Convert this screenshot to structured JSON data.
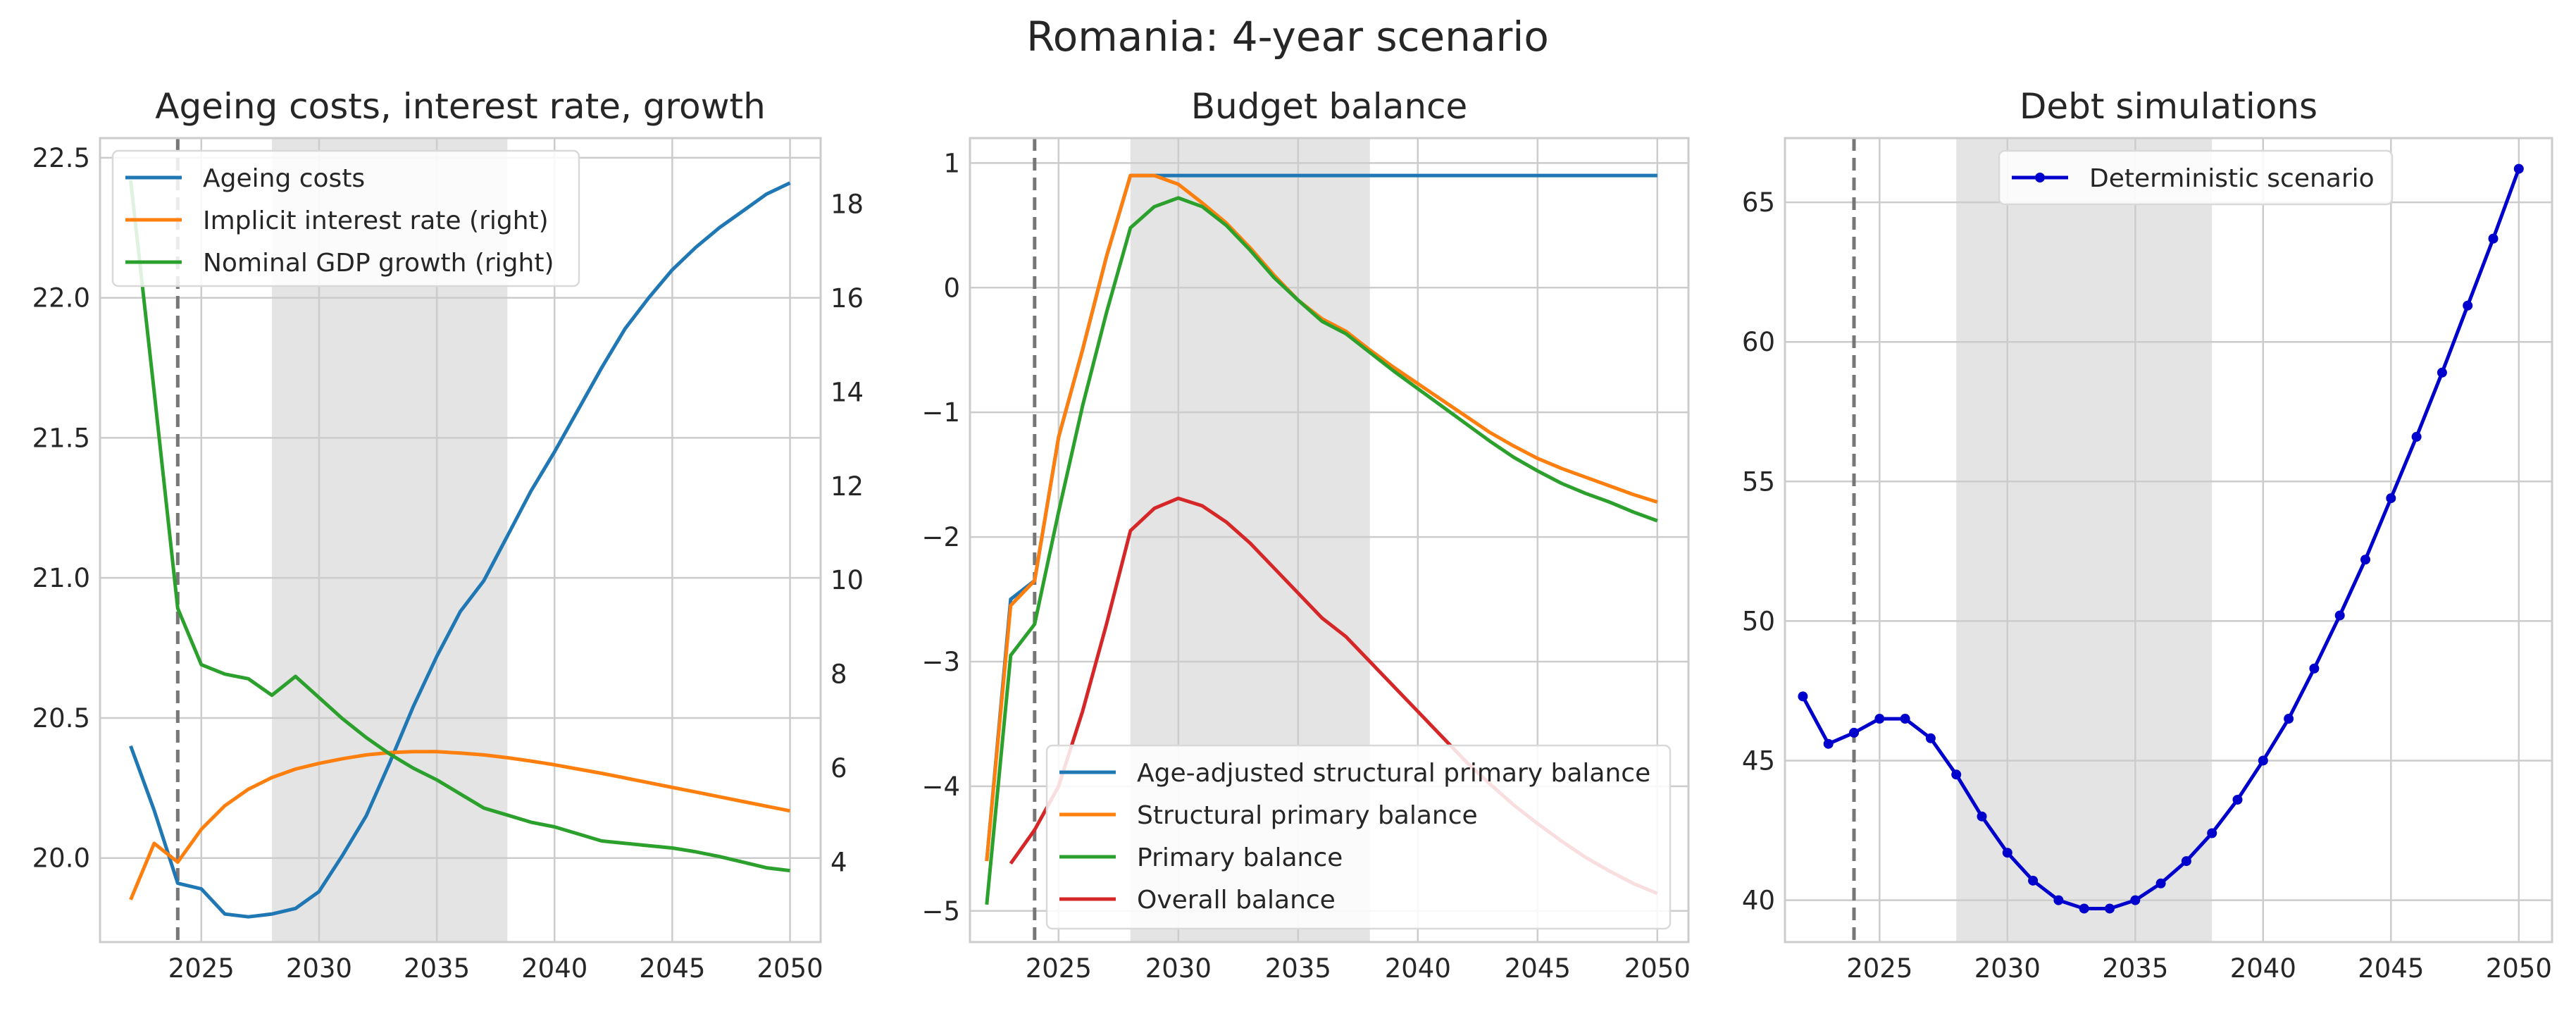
{
  "suptitle": "Romania: 4-year scenario",
  "colors": {
    "blue": "#1f77b4",
    "orange": "#ff7f0e",
    "green": "#2ca02c",
    "red": "#d62728",
    "debt_blue": "#0000cc",
    "grid": "#cccccc",
    "shade": "#e4e4e4",
    "vline": "#777777"
  },
  "chart_data": [
    {
      "type": "line",
      "title": "Ageing costs, interest rate, growth",
      "xlim": [
        2020.7,
        2051.3
      ],
      "ylim": [
        19.7,
        22.57
      ],
      "y2lim": [
        2.3,
        19.4
      ],
      "xticks": [
        2025,
        2030,
        2035,
        2040,
        2045,
        2050
      ],
      "yticks": [
        20.0,
        20.5,
        21.0,
        21.5,
        22.0,
        22.5
      ],
      "ytick_labels": [
        "20.0",
        "20.5",
        "21.0",
        "21.5",
        "22.0",
        "22.5"
      ],
      "y2ticks": [
        4,
        6,
        8,
        10,
        12,
        14,
        16,
        18
      ],
      "grid": true,
      "legend_position": "upper-left",
      "shaded_region": [
        2028,
        2038
      ],
      "vline": 2024,
      "series": [
        {
          "name": "Ageing costs",
          "axis": "left",
          "color": "#1f77b4",
          "x": [
            2022,
            2023,
            2024,
            2025,
            2026,
            2027,
            2028,
            2029,
            2030,
            2031,
            2032,
            2033,
            2034,
            2035,
            2036,
            2037,
            2038,
            2039,
            2040,
            2041,
            2042,
            2043,
            2044,
            2045,
            2046,
            2047,
            2048,
            2049,
            2050
          ],
          "y": [
            20.4,
            20.17,
            19.91,
            19.89,
            19.8,
            19.79,
            19.8,
            19.82,
            19.88,
            20.01,
            20.15,
            20.34,
            20.54,
            20.72,
            20.88,
            20.99,
            21.15,
            21.31,
            21.45,
            21.6,
            21.75,
            21.89,
            22.0,
            22.1,
            22.18,
            22.25,
            22.31,
            22.37,
            22.41
          ]
        },
        {
          "name": "Implicit interest rate (right)",
          "axis": "right",
          "color": "#ff7f0e",
          "x": [
            2022,
            2023,
            2024,
            2025,
            2026,
            2027,
            2028,
            2029,
            2030,
            2031,
            2032,
            2033,
            2034,
            2035,
            2036,
            2037,
            2038,
            2039,
            2040,
            2041,
            2042,
            2043,
            2044,
            2045,
            2046,
            2047,
            2048,
            2049,
            2050
          ],
          "y": [
            3.2,
            4.4,
            4.0,
            4.7,
            5.2,
            5.55,
            5.8,
            5.98,
            6.1,
            6.2,
            6.28,
            6.33,
            6.35,
            6.35,
            6.32,
            6.28,
            6.22,
            6.15,
            6.07,
            5.98,
            5.89,
            5.79,
            5.69,
            5.59,
            5.49,
            5.39,
            5.29,
            5.19,
            5.09
          ]
        },
        {
          "name": "Nominal GDP growth (right)",
          "axis": "right",
          "color": "#2ca02c",
          "x": [
            2022,
            2023,
            2024,
            2025,
            2026,
            2027,
            2028,
            2029,
            2030,
            2031,
            2032,
            2033,
            2034,
            2035,
            2036,
            2037,
            2038,
            2039,
            2040,
            2041,
            2042,
            2043,
            2044,
            2045,
            2046,
            2047,
            2048,
            2049,
            2050
          ],
          "y": [
            18.5,
            14.0,
            9.4,
            8.2,
            8.0,
            7.9,
            7.55,
            7.95,
            7.5,
            7.05,
            6.65,
            6.3,
            6.0,
            5.75,
            5.45,
            5.15,
            5.0,
            4.85,
            4.75,
            4.6,
            4.45,
            4.4,
            4.35,
            4.3,
            4.22,
            4.12,
            4.0,
            3.88,
            3.82
          ]
        }
      ]
    },
    {
      "type": "line",
      "title": "Budget balance",
      "xlim": [
        2021.3,
        2051.3
      ],
      "ylim": [
        -5.25,
        1.2
      ],
      "xticks": [
        2025,
        2030,
        2035,
        2040,
        2045,
        2050
      ],
      "yticks": [
        -5,
        -4,
        -3,
        -2,
        -1,
        0,
        1
      ],
      "ytick_labels": [
        "−5",
        "−4",
        "−3",
        "−2",
        "−1",
        "0",
        "1"
      ],
      "grid": true,
      "legend_position": "lower-right",
      "shaded_region": [
        2028,
        2038
      ],
      "vline": 2024,
      "series": [
        {
          "name": "Age-adjusted structural primary balance",
          "color": "#1f77b4",
          "x": [
            2022,
            2023,
            2024,
            2025,
            2026,
            2027,
            2028,
            2029,
            2030,
            2031,
            2032,
            2033,
            2034,
            2035,
            2036,
            2037,
            2038,
            2039,
            2040,
            2041,
            2042,
            2043,
            2044,
            2045,
            2046,
            2047,
            2048,
            2049,
            2050
          ],
          "y": [
            -4.6,
            -2.5,
            -2.35,
            -1.2,
            -0.5,
            0.25,
            0.9,
            0.9,
            0.9,
            0.9,
            0.9,
            0.9,
            0.9,
            0.9,
            0.9,
            0.9,
            0.9,
            0.9,
            0.9,
            0.9,
            0.9,
            0.9,
            0.9,
            0.9,
            0.9,
            0.9,
            0.9,
            0.9,
            0.9
          ]
        },
        {
          "name": "Structural primary balance",
          "color": "#ff7f0e",
          "x": [
            2022,
            2023,
            2024,
            2025,
            2026,
            2027,
            2028,
            2029,
            2030,
            2031,
            2032,
            2033,
            2034,
            2035,
            2036,
            2037,
            2038,
            2039,
            2040,
            2041,
            2042,
            2043,
            2044,
            2045,
            2046,
            2047,
            2048,
            2049,
            2050
          ],
          "y": [
            -4.6,
            -2.55,
            -2.35,
            -1.2,
            -0.5,
            0.25,
            0.9,
            0.9,
            0.83,
            0.68,
            0.52,
            0.32,
            0.1,
            -0.1,
            -0.25,
            -0.35,
            -0.5,
            -0.64,
            -0.77,
            -0.9,
            -1.03,
            -1.16,
            -1.27,
            -1.37,
            -1.45,
            -1.52,
            -1.59,
            -1.66,
            -1.72
          ]
        },
        {
          "name": "Primary balance",
          "color": "#2ca02c",
          "x": [
            2022,
            2023,
            2024,
            2025,
            2026,
            2027,
            2028,
            2029,
            2030,
            2031,
            2032,
            2033,
            2034,
            2035,
            2036,
            2037,
            2038,
            2039,
            2040,
            2041,
            2042,
            2043,
            2044,
            2045,
            2046,
            2047,
            2048,
            2049,
            2050
          ],
          "y": [
            -4.95,
            -2.95,
            -2.7,
            -1.8,
            -0.95,
            -0.2,
            0.48,
            0.65,
            0.72,
            0.65,
            0.5,
            0.3,
            0.08,
            -0.1,
            -0.27,
            -0.37,
            -0.52,
            -0.67,
            -0.81,
            -0.95,
            -1.09,
            -1.23,
            -1.36,
            -1.47,
            -1.57,
            -1.65,
            -1.72,
            -1.8,
            -1.87
          ]
        },
        {
          "name": "Overall balance",
          "color": "#d62728",
          "x": [
            2023,
            2024,
            2025,
            2026,
            2027,
            2028,
            2029,
            2030,
            2031,
            2032,
            2033,
            2034,
            2035,
            2036,
            2037,
            2038,
            2039,
            2040,
            2041,
            2042,
            2043,
            2044,
            2045,
            2046,
            2047,
            2048,
            2049,
            2050
          ],
          "y": [
            -4.62,
            -4.35,
            -4.0,
            -3.4,
            -2.7,
            -1.95,
            -1.77,
            -1.69,
            -1.75,
            -1.88,
            -2.05,
            -2.25,
            -2.45,
            -2.65,
            -2.8,
            -3.0,
            -3.2,
            -3.4,
            -3.6,
            -3.8,
            -3.98,
            -4.15,
            -4.3,
            -4.44,
            -4.57,
            -4.68,
            -4.78,
            -4.86
          ]
        }
      ]
    },
    {
      "type": "line",
      "title": "Debt simulations",
      "xlim": [
        2021.3,
        2051.3
      ],
      "ylim": [
        38.5,
        67.3
      ],
      "xticks": [
        2025,
        2030,
        2035,
        2040,
        2045,
        2050
      ],
      "yticks": [
        40,
        45,
        50,
        55,
        60,
        65
      ],
      "ytick_labels": [
        "40",
        "45",
        "50",
        "55",
        "60",
        "65"
      ],
      "grid": true,
      "legend_position": "upper-center",
      "shaded_region": [
        2028,
        2038
      ],
      "vline": 2024,
      "series": [
        {
          "name": "Deterministic scenario",
          "color": "#0000cc",
          "markers": true,
          "x": [
            2022,
            2023,
            2024,
            2025,
            2026,
            2027,
            2028,
            2029,
            2030,
            2031,
            2032,
            2033,
            2034,
            2035,
            2036,
            2037,
            2038,
            2039,
            2040,
            2041,
            2042,
            2043,
            2044,
            2045,
            2046,
            2047,
            2048,
            2049,
            2050
          ],
          "y": [
            47.3,
            45.6,
            46.0,
            46.5,
            46.5,
            45.8,
            44.5,
            43.0,
            41.7,
            40.7,
            40.0,
            39.7,
            39.7,
            40.0,
            40.6,
            41.4,
            42.4,
            43.6,
            45.0,
            46.5,
            48.3,
            50.2,
            52.2,
            54.4,
            56.6,
            58.9,
            61.3,
            63.7,
            66.2
          ]
        }
      ]
    }
  ]
}
